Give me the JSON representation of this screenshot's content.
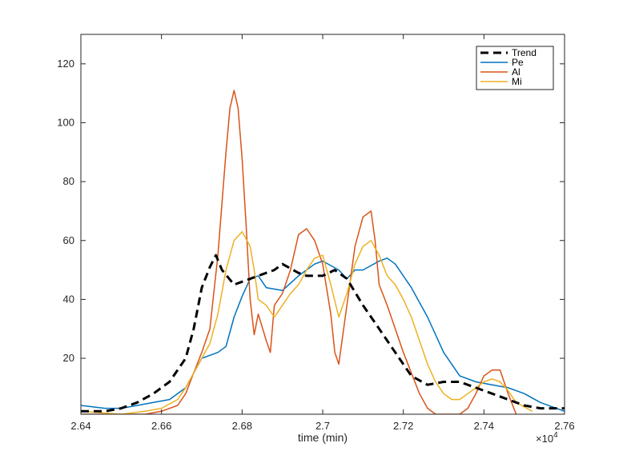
{
  "chart_data": {
    "type": "line",
    "title": "",
    "xlabel": "time (min)",
    "ylabel": "",
    "x_exponent_label": "×10",
    "x_exponent_power": "4",
    "xlim": [
      26400,
      27600
    ],
    "ylim": [
      1,
      130
    ],
    "x_ticks": [
      26400,
      26600,
      26800,
      27000,
      27200,
      27400,
      27600
    ],
    "x_tick_labels": [
      "2.64",
      "2.66",
      "2.68",
      "2.7",
      "2.72",
      "2.74",
      "2.76"
    ],
    "y_ticks": [
      20,
      40,
      60,
      80,
      100,
      120
    ],
    "y_tick_labels": [
      "20",
      "40",
      "60",
      "80",
      "100",
      "120"
    ],
    "grid": false,
    "legend_position": "top-right",
    "series": [
      {
        "name": "Trend",
        "color": "#000000",
        "dash": true,
        "x": [
          26400,
          26460,
          26500,
          26540,
          26580,
          26620,
          26660,
          26680,
          26700,
          26720,
          26735,
          26750,
          26780,
          26800,
          26840,
          26880,
          26900,
          26940,
          26960,
          27000,
          27030,
          27060,
          27100,
          27140,
          27180,
          27220,
          27260,
          27300,
          27340,
          27380,
          27420,
          27460,
          27500,
          27540,
          27600
        ],
        "y": [
          2,
          2,
          3,
          5,
          8,
          12,
          20,
          30,
          44,
          51,
          55,
          50,
          45,
          46,
          48,
          50,
          52,
          49,
          48,
          48,
          50,
          47,
          38,
          30,
          22,
          14,
          11,
          12,
          12,
          10,
          8,
          6,
          4,
          3,
          3
        ]
      },
      {
        "name": "Pe",
        "color": "#0072BD",
        "dash": false,
        "x": [
          26400,
          26460,
          26500,
          26540,
          26580,
          26620,
          26660,
          26700,
          26740,
          26760,
          26780,
          26800,
          26820,
          26840,
          26860,
          26900,
          26940,
          26980,
          27000,
          27040,
          27060,
          27080,
          27100,
          27140,
          27160,
          27180,
          27220,
          27260,
          27300,
          27340,
          27380,
          27420,
          27460,
          27500,
          27540,
          27600
        ],
        "y": [
          4,
          3,
          3,
          4,
          5,
          6,
          10,
          20,
          22,
          24,
          34,
          41,
          47,
          48,
          44,
          43,
          48,
          52,
          53,
          50,
          47,
          50,
          50,
          53,
          54,
          52,
          44,
          34,
          22,
          14,
          12,
          11,
          10,
          8,
          5,
          2
        ]
      },
      {
        "name": "Al",
        "color": "#D95319",
        "dash": false,
        "x": [
          26400,
          26500,
          26560,
          26600,
          26640,
          26660,
          26680,
          26700,
          26720,
          26740,
          26760,
          26770,
          26780,
          26790,
          26800,
          26810,
          26820,
          26830,
          26840,
          26860,
          26870,
          26880,
          26900,
          26920,
          26940,
          26960,
          26980,
          27000,
          27020,
          27030,
          27040,
          27060,
          27080,
          27100,
          27120,
          27130,
          27140,
          27160,
          27180,
          27200,
          27220,
          27240,
          27260,
          27280,
          27300,
          27320,
          27340,
          27360,
          27380,
          27400,
          27420,
          27440,
          27460,
          27480
        ],
        "y": [
          1,
          1,
          1,
          2,
          4,
          8,
          15,
          22,
          30,
          55,
          90,
          105,
          111,
          105,
          88,
          65,
          40,
          28,
          35,
          26,
          22,
          38,
          42,
          50,
          62,
          64,
          60,
          52,
          35,
          22,
          18,
          38,
          58,
          68,
          70,
          60,
          45,
          38,
          30,
          22,
          15,
          8,
          3,
          1,
          1,
          1,
          1,
          3,
          8,
          14,
          16,
          16,
          8,
          1
        ]
      },
      {
        "name": "Mi",
        "color": "#EDB120",
        "dash": false,
        "x": [
          26400,
          26500,
          26560,
          26600,
          26640,
          26660,
          26680,
          26700,
          26720,
          26740,
          26760,
          26780,
          26800,
          26820,
          26830,
          26840,
          26860,
          26880,
          26900,
          26920,
          26940,
          26960,
          26980,
          27000,
          27020,
          27040,
          27060,
          27080,
          27100,
          27120,
          27140,
          27160,
          27180,
          27200,
          27220,
          27240,
          27260,
          27280,
          27300,
          27320,
          27340,
          27360,
          27380,
          27400,
          27420,
          27440,
          27460,
          27480,
          27520
        ],
        "y": [
          2,
          1,
          2,
          3,
          6,
          10,
          15,
          20,
          25,
          35,
          50,
          60,
          63,
          58,
          50,
          40,
          38,
          34,
          38,
          42,
          45,
          50,
          54,
          55,
          45,
          34,
          42,
          52,
          58,
          60,
          55,
          48,
          45,
          40,
          34,
          26,
          18,
          12,
          8,
          6,
          6,
          8,
          10,
          12,
          13,
          12,
          9,
          5,
          2
        ]
      }
    ]
  }
}
